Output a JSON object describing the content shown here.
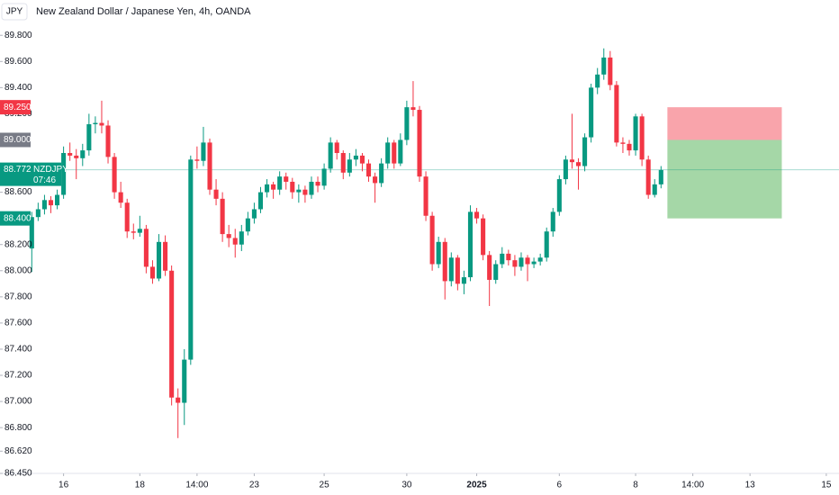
{
  "chart_data": {
    "type": "candlestick",
    "title": "New Zealand Dollar / Japanese Yen, 4h, OANDA",
    "currency": "JPY",
    "up_color": "#089981",
    "down_color": "#f23645",
    "ylim": [
      86.45,
      90.07
    ],
    "xlim": [
      -5,
      127
    ],
    "yticks": [
      {
        "value": 89.8,
        "label": "89.800"
      },
      {
        "value": 89.6,
        "label": "89.600"
      },
      {
        "value": 89.4,
        "label": "89.400"
      },
      {
        "value": 89.2,
        "label": "89.200"
      },
      {
        "value": 88.6,
        "label": "88.600"
      },
      {
        "value": 88.2,
        "label": "88.200"
      },
      {
        "value": 88.0,
        "label": "88.000"
      },
      {
        "value": 87.8,
        "label": "87.800"
      },
      {
        "value": 87.6,
        "label": "87.600"
      },
      {
        "value": 87.4,
        "label": "87.400"
      },
      {
        "value": 87.2,
        "label": "87.200"
      },
      {
        "value": 87.0,
        "label": "87.000"
      },
      {
        "value": 86.8,
        "label": "86.800"
      },
      {
        "value": 86.62,
        "label": "86.620"
      },
      {
        "value": 86.45,
        "label": "86.450"
      }
    ],
    "xticks": [
      {
        "value": 5,
        "label": "16"
      },
      {
        "value": 17,
        "label": "18"
      },
      {
        "value": 26,
        "label": "14:00"
      },
      {
        "value": 35,
        "label": "23"
      },
      {
        "value": 46,
        "label": "25"
      },
      {
        "value": 59,
        "label": "30"
      },
      {
        "value": 70,
        "label": "2025"
      },
      {
        "value": 83,
        "label": "6"
      },
      {
        "value": 95,
        "label": "8"
      },
      {
        "value": 104,
        "label": "14:00"
      },
      {
        "value": 113,
        "label": "13"
      },
      {
        "value": 125,
        "label": "15"
      }
    ],
    "ohlc": [
      [
        88.17,
        88.45,
        87.99,
        88.41
      ],
      [
        88.41,
        88.52,
        88.38,
        88.47
      ],
      [
        88.47,
        88.58,
        88.43,
        88.54
      ],
      [
        88.54,
        88.57,
        88.44,
        88.5
      ],
      [
        88.5,
        88.62,
        88.47,
        88.58
      ],
      [
        88.58,
        88.95,
        88.55,
        88.9
      ],
      [
        88.9,
        88.98,
        88.84,
        88.88
      ],
      [
        88.88,
        88.93,
        88.7,
        88.86
      ],
      [
        88.86,
        88.97,
        88.8,
        88.92
      ],
      [
        88.92,
        89.2,
        88.88,
        89.12
      ],
      [
        89.12,
        89.18,
        89.05,
        89.13
      ],
      [
        89.13,
        89.3,
        89.05,
        89.11
      ],
      [
        89.11,
        89.15,
        88.82,
        88.87
      ],
      [
        88.87,
        88.9,
        88.55,
        88.6
      ],
      [
        88.6,
        88.68,
        88.48,
        88.52
      ],
      [
        88.52,
        88.55,
        88.25,
        88.3
      ],
      [
        88.3,
        88.36,
        88.24,
        88.29
      ],
      [
        88.29,
        88.42,
        88.26,
        88.32
      ],
      [
        88.32,
        88.35,
        87.98,
        88.03
      ],
      [
        88.03,
        88.08,
        87.9,
        87.94
      ],
      [
        87.94,
        88.28,
        87.92,
        88.22
      ],
      [
        88.22,
        88.27,
        87.96,
        88.0
      ],
      [
        88.0,
        88.04,
        86.97,
        87.03
      ],
      [
        87.03,
        87.1,
        86.72,
        86.99
      ],
      [
        86.99,
        87.4,
        86.82,
        87.32
      ],
      [
        87.32,
        88.88,
        87.28,
        88.85
      ],
      [
        88.85,
        88.95,
        88.78,
        88.84
      ],
      [
        88.84,
        89.1,
        88.8,
        88.98
      ],
      [
        88.98,
        89.01,
        88.58,
        88.62
      ],
      [
        88.62,
        88.7,
        88.5,
        88.55
      ],
      [
        88.55,
        88.6,
        88.22,
        88.28
      ],
      [
        88.28,
        88.35,
        88.18,
        88.25
      ],
      [
        88.25,
        88.32,
        88.1,
        88.2
      ],
      [
        88.2,
        88.35,
        88.15,
        88.3
      ],
      [
        88.3,
        88.45,
        88.27,
        88.4
      ],
      [
        88.4,
        88.52,
        88.36,
        88.47
      ],
      [
        88.47,
        88.64,
        88.44,
        88.6
      ],
      [
        88.6,
        88.7,
        88.56,
        88.66
      ],
      [
        88.66,
        88.68,
        88.55,
        88.62
      ],
      [
        88.62,
        88.76,
        88.58,
        88.72
      ],
      [
        88.72,
        88.75,
        88.62,
        88.68
      ],
      [
        88.68,
        88.71,
        88.55,
        88.6
      ],
      [
        88.6,
        88.66,
        88.52,
        88.62
      ],
      [
        88.62,
        88.65,
        88.52,
        88.58
      ],
      [
        88.58,
        88.72,
        88.55,
        88.68
      ],
      [
        88.68,
        88.72,
        88.6,
        88.65
      ],
      [
        88.65,
        88.82,
        88.62,
        88.78
      ],
      [
        88.78,
        89.02,
        88.75,
        88.98
      ],
      [
        88.98,
        89.0,
        88.85,
        88.9
      ],
      [
        88.9,
        88.92,
        88.7,
        88.75
      ],
      [
        88.75,
        88.9,
        88.72,
        88.85
      ],
      [
        88.85,
        88.93,
        88.8,
        88.88
      ],
      [
        88.88,
        88.9,
        88.76,
        88.82
      ],
      [
        88.82,
        88.85,
        88.68,
        88.72
      ],
      [
        88.72,
        88.75,
        88.52,
        88.67
      ],
      [
        88.67,
        88.86,
        88.64,
        88.82
      ],
      [
        88.82,
        89.02,
        88.78,
        88.98
      ],
      [
        88.98,
        89.0,
        88.78,
        88.82
      ],
      [
        88.82,
        89.05,
        88.8,
        89.0
      ],
      [
        89.0,
        89.3,
        88.96,
        89.25
      ],
      [
        89.25,
        89.45,
        89.18,
        89.23
      ],
      [
        89.23,
        89.26,
        88.68,
        88.72
      ],
      [
        88.72,
        88.76,
        88.38,
        88.42
      ],
      [
        88.42,
        88.45,
        88.0,
        88.05
      ],
      [
        88.05,
        88.26,
        88.02,
        88.22
      ],
      [
        88.22,
        88.25,
        87.78,
        87.92
      ],
      [
        87.92,
        88.14,
        87.88,
        88.1
      ],
      [
        88.1,
        88.12,
        87.85,
        87.9
      ],
      [
        87.9,
        88.0,
        87.82,
        87.95
      ],
      [
        87.95,
        88.5,
        87.92,
        88.45
      ],
      [
        88.45,
        88.48,
        88.36,
        88.4
      ],
      [
        88.4,
        88.43,
        88.08,
        88.12
      ],
      [
        88.12,
        88.15,
        87.73,
        87.93
      ],
      [
        87.93,
        88.08,
        87.9,
        88.05
      ],
      [
        88.05,
        88.18,
        88.02,
        88.13
      ],
      [
        88.13,
        88.16,
        88.04,
        88.08
      ],
      [
        88.08,
        88.12,
        87.96,
        88.03
      ],
      [
        88.03,
        88.14,
        88.0,
        88.1
      ],
      [
        88.1,
        88.12,
        87.92,
        88.05
      ],
      [
        88.05,
        88.1,
        88.02,
        88.07
      ],
      [
        88.07,
        88.13,
        88.04,
        88.1
      ],
      [
        88.1,
        88.33,
        88.07,
        88.3
      ],
      [
        88.3,
        88.48,
        88.26,
        88.45
      ],
      [
        88.45,
        88.73,
        88.42,
        88.7
      ],
      [
        88.7,
        88.88,
        88.66,
        88.85
      ],
      [
        88.85,
        89.2,
        88.78,
        88.83
      ],
      [
        88.83,
        88.86,
        88.62,
        88.8
      ],
      [
        88.8,
        89.05,
        88.76,
        89.02
      ],
      [
        89.02,
        89.43,
        88.98,
        89.4
      ],
      [
        89.4,
        89.55,
        89.35,
        89.5
      ],
      [
        89.5,
        89.7,
        89.46,
        89.63
      ],
      [
        89.63,
        89.68,
        89.38,
        89.42
      ],
      [
        89.42,
        89.45,
        88.95,
        88.98
      ],
      [
        88.98,
        89.02,
        88.9,
        88.97
      ],
      [
        88.97,
        89.0,
        88.88,
        88.92
      ],
      [
        88.92,
        89.2,
        88.88,
        89.18
      ],
      [
        89.18,
        89.2,
        88.8,
        88.85
      ],
      [
        88.85,
        88.88,
        88.55,
        88.58
      ],
      [
        88.58,
        88.7,
        88.56,
        88.66
      ],
      [
        88.66,
        88.8,
        88.63,
        88.77
      ]
    ],
    "position": {
      "start": 100,
      "end": 118,
      "entry": 89.0,
      "stop": 89.25,
      "target": 88.4
    },
    "price_markers": [
      {
        "value": 89.25,
        "label": "89.250",
        "color": "#f23645"
      },
      {
        "value": 89.0,
        "label": "89.000",
        "color": "#787b86"
      },
      {
        "value": 88.4,
        "label": "88.400",
        "color": "#089981"
      }
    ],
    "last_price": {
      "value": 88.772,
      "label": "88.772",
      "symbol": "NZDJPY",
      "countdown": "07:46",
      "color": "#089981"
    }
  }
}
